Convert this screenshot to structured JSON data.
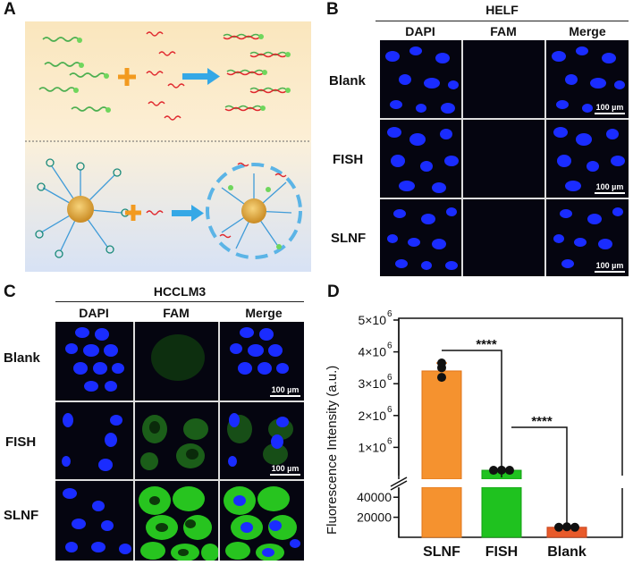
{
  "panel_labels": {
    "a": "A",
    "b": "B",
    "c": "C",
    "d": "D"
  },
  "panel_b": {
    "title": "HELF",
    "columns": [
      "DAPI",
      "FAM",
      "Merge"
    ],
    "rows": [
      "Blank",
      "FISH",
      "SLNF"
    ],
    "scale_label": "100 µm"
  },
  "panel_c": {
    "title": "HCCLM3",
    "columns": [
      "DAPI",
      "FAM",
      "Merge"
    ],
    "rows": [
      "Blank",
      "FISH",
      "SLNF"
    ],
    "scale_label": "100 µm"
  },
  "colors": {
    "dapi": "#1a2cff",
    "fam": "#22c21e",
    "slnf_bar": "#f5922f",
    "fish_bar": "#1fc21f",
    "blank_bar": "#e85a2a",
    "schematic_top": "#fbebc8",
    "schematic_bottom": "#dde6f4",
    "arrow": "#35a8e6",
    "plus": "#f29a1f"
  },
  "chart_data": {
    "type": "bar",
    "categories": [
      "SLNF",
      "FISH",
      "Blank"
    ],
    "values": [
      3400000,
      280000,
      10000
    ],
    "points": [
      [
        3200000,
        3500000,
        3650000
      ],
      [
        280000,
        285000,
        280000
      ],
      [
        10000,
        10500,
        10000
      ]
    ],
    "ylabel": "Fluorescence Intensity  (a.u.)",
    "yticks_upper": [
      "1×10",
      "2×10",
      "3×10",
      "4×10",
      "5×10"
    ],
    "ytick_exponent": "6",
    "yticks_lower": [
      "20000",
      "40000"
    ],
    "broken_axis": true,
    "significance": [
      "****",
      "****"
    ]
  }
}
